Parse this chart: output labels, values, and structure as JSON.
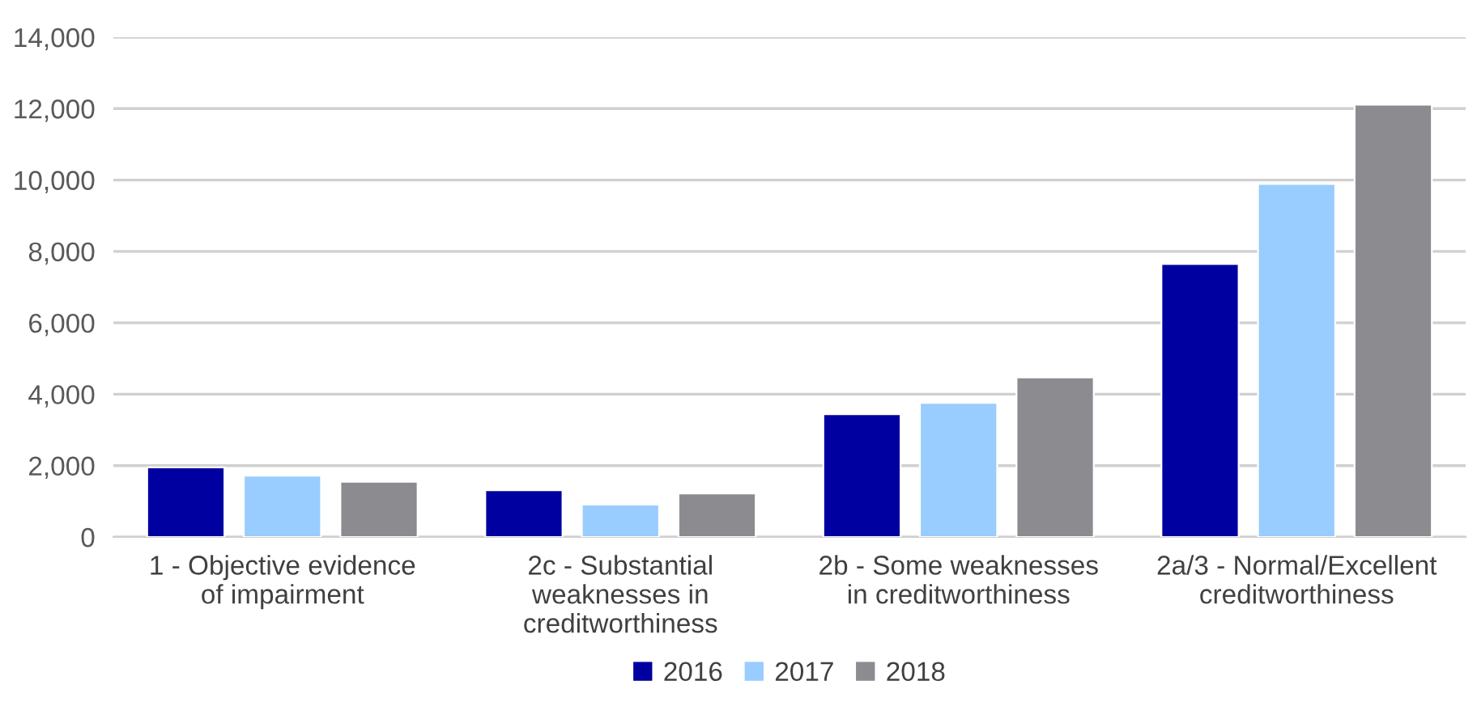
{
  "chart_data": {
    "type": "bar",
    "categories": [
      "1 - Objective evidence\nof impairment",
      "2c - Substantial\nweaknesses in\ncreditworthiness",
      "2b - Some weaknesses\nin creditworthiness",
      "2a/3 - Normal/Excellent\ncreditworthiness"
    ],
    "series": [
      {
        "name": "2016",
        "color": "#0000a0",
        "values": [
          1950,
          1310,
          3440,
          7650
        ]
      },
      {
        "name": "2017",
        "color": "#99ccff",
        "values": [
          1720,
          910,
          3760,
          9890
        ]
      },
      {
        "name": "2018",
        "color": "#8c8c90",
        "values": [
          1550,
          1220,
          4470,
          12110
        ]
      }
    ],
    "ylim": [
      0,
      14000
    ],
    "yticks": [
      {
        "value": 0,
        "label": "0"
      },
      {
        "value": 2000,
        "label": "2,000"
      },
      {
        "value": 4000,
        "label": "4,000"
      },
      {
        "value": 6000,
        "label": "6,000"
      },
      {
        "value": 8000,
        "label": "8,000"
      },
      {
        "value": 10000,
        "label": "10,000"
      },
      {
        "value": 12000,
        "label": "12,000"
      },
      {
        "value": 14000,
        "label": "14,000"
      }
    ],
    "grid": "y",
    "legend": "bottom"
  }
}
